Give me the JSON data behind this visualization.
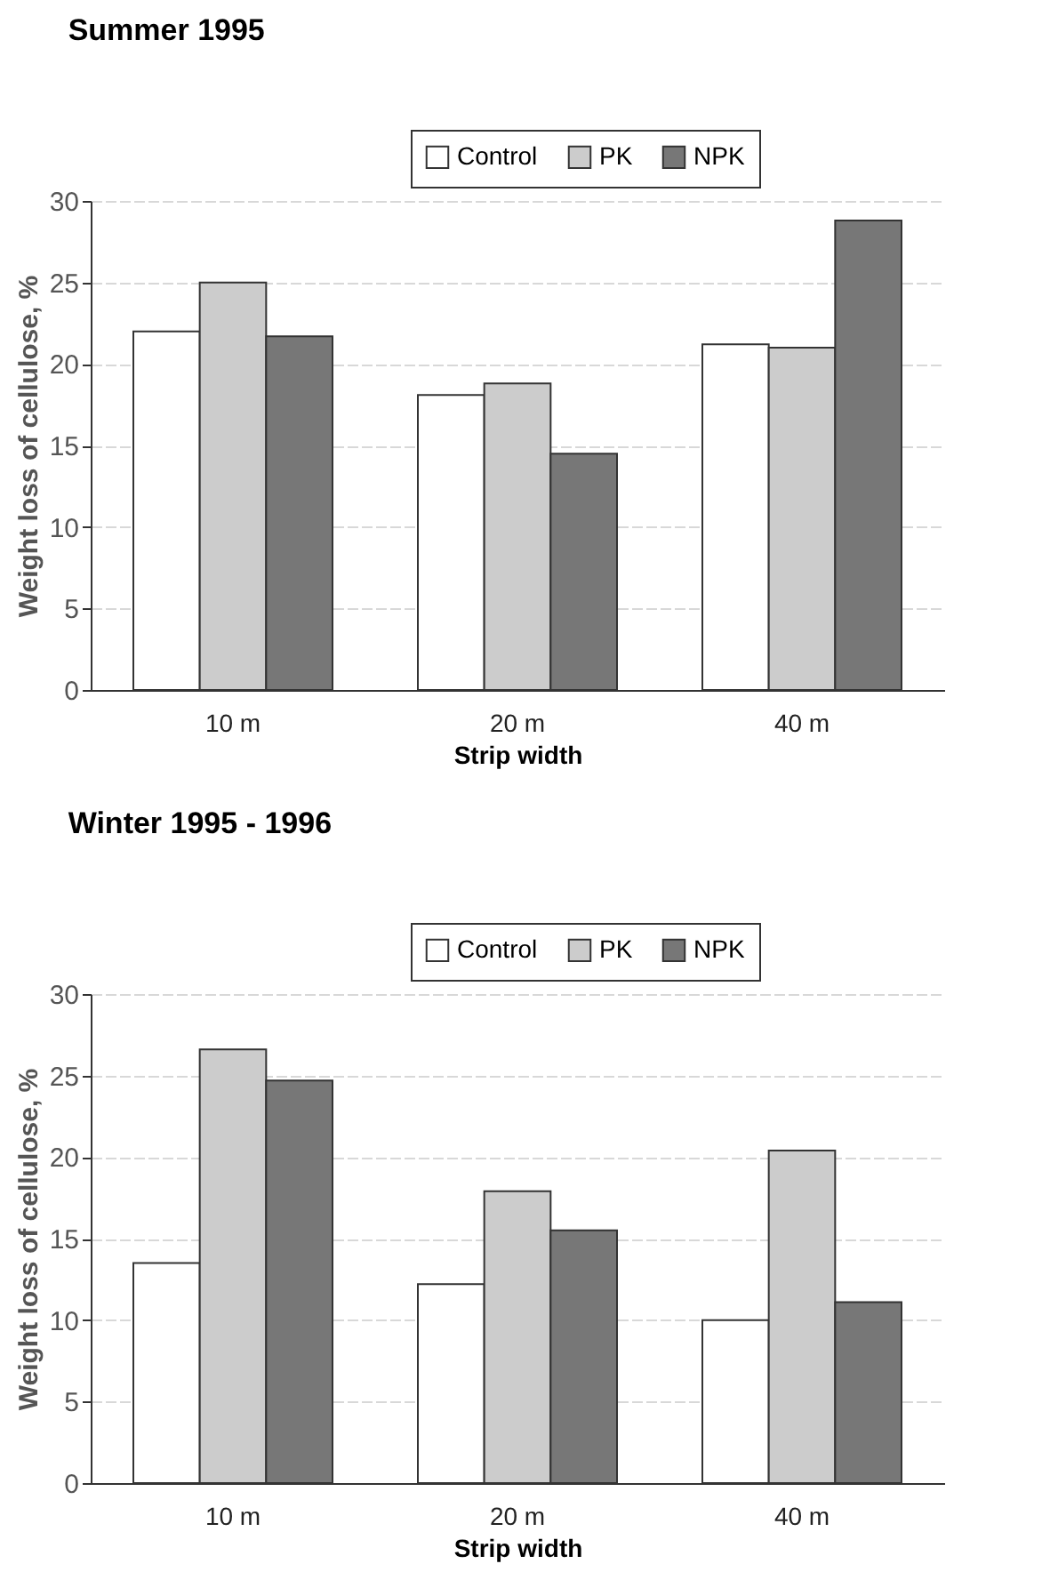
{
  "chart_data": [
    {
      "type": "bar",
      "title": "Summer 1995",
      "xlabel": "Strip width",
      "ylabel": "Weight loss of cellulose, %",
      "categories": [
        "10 m",
        "20 m",
        "40 m"
      ],
      "series": [
        {
          "name": "Control",
          "color": "#ffffff",
          "values": [
            22,
            18.1,
            21.2
          ]
        },
        {
          "name": "PK",
          "color": "#cccccc",
          "values": [
            25,
            18.8,
            21
          ]
        },
        {
          "name": "NPK",
          "color": "#777777",
          "values": [
            21.7,
            14.5,
            28.8
          ]
        }
      ],
      "ylim": [
        0,
        30
      ],
      "yticks": [
        0,
        5,
        10,
        15,
        20,
        25,
        30
      ],
      "grid": "y",
      "legend": "top right"
    },
    {
      "type": "bar",
      "title": "Winter 1995 - 1996",
      "xlabel": "Strip width",
      "ylabel": "Weight loss of cellulose, %",
      "categories": [
        "10 m",
        "20 m",
        "40 m"
      ],
      "series": [
        {
          "name": "Control",
          "color": "#ffffff",
          "values": [
            13.5,
            12.2,
            10
          ]
        },
        {
          "name": "PK",
          "color": "#cccccc",
          "values": [
            26.6,
            17.9,
            20.4
          ]
        },
        {
          "name": "NPK",
          "color": "#777777",
          "values": [
            24.7,
            15.5,
            11.1
          ]
        }
      ],
      "ylim": [
        0,
        30
      ],
      "yticks": [
        0,
        5,
        10,
        15,
        20,
        25,
        30
      ],
      "grid": "y",
      "legend": "top right"
    }
  ]
}
